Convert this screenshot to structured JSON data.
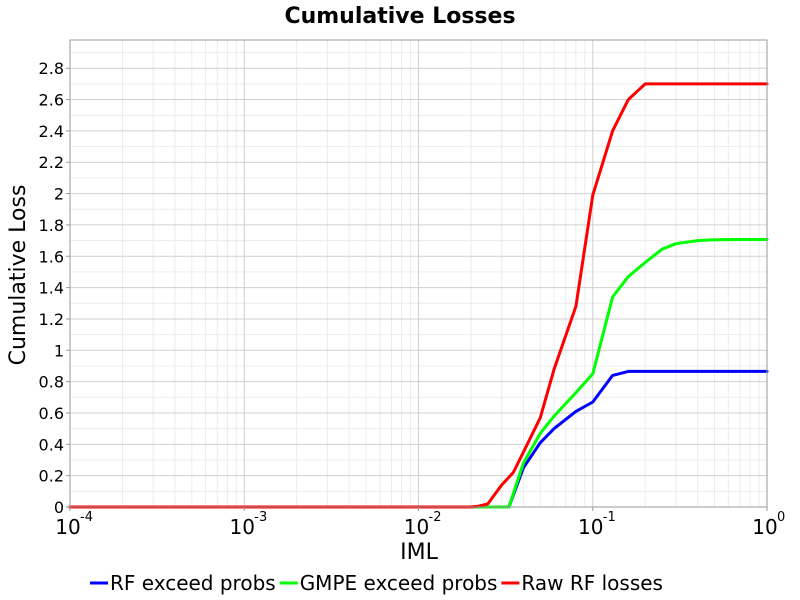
{
  "chart_data": {
    "type": "line",
    "title": "Cumulative Losses",
    "xlabel": "IML",
    "ylabel": "Cumulative Loss",
    "xscale": "log",
    "xlim": [
      0.0001,
      1
    ],
    "ylim": [
      0,
      2.98
    ],
    "x_ticks": [
      {
        "base": "10",
        "exp": "-4"
      },
      {
        "base": "10",
        "exp": "-3"
      },
      {
        "base": "10",
        "exp": "-2"
      },
      {
        "base": "10",
        "exp": "-1"
      },
      {
        "base": "10",
        "exp": "0"
      }
    ],
    "y_ticks": [
      "0",
      "0.2",
      "0.4",
      "0.6",
      "0.8",
      "1",
      "1.2",
      "1.4",
      "1.6",
      "1.8",
      "2",
      "2.2",
      "2.4",
      "2.6",
      "2.8"
    ],
    "grid": true,
    "legend_position": "bottom",
    "series": [
      {
        "name": "RF exceed probs",
        "color": "#0000ff",
        "points": [
          [
            0.0001,
            0
          ],
          [
            0.003,
            0
          ],
          [
            0.01,
            0
          ],
          [
            0.02,
            0
          ],
          [
            0.025,
            0
          ],
          [
            0.03,
            0
          ],
          [
            0.033,
            0
          ],
          [
            0.04,
            0.25
          ],
          [
            0.05,
            0.41
          ],
          [
            0.06,
            0.5
          ],
          [
            0.08,
            0.61
          ],
          [
            0.1,
            0.67
          ],
          [
            0.13,
            0.84
          ],
          [
            0.16,
            0.865
          ],
          [
            0.2,
            0.865
          ],
          [
            0.3,
            0.865
          ],
          [
            0.5,
            0.865
          ],
          [
            1,
            0.865
          ]
        ]
      },
      {
        "name": "GMPE exceed probs",
        "color": "#00ff00",
        "points": [
          [
            0.0001,
            0
          ],
          [
            0.003,
            0
          ],
          [
            0.01,
            0
          ],
          [
            0.02,
            0
          ],
          [
            0.025,
            0
          ],
          [
            0.03,
            0
          ],
          [
            0.033,
            0
          ],
          [
            0.04,
            0.28
          ],
          [
            0.05,
            0.47
          ],
          [
            0.06,
            0.58
          ],
          [
            0.08,
            0.73
          ],
          [
            0.1,
            0.85
          ],
          [
            0.13,
            1.34
          ],
          [
            0.16,
            1.47
          ],
          [
            0.2,
            1.56
          ],
          [
            0.25,
            1.645
          ],
          [
            0.3,
            1.68
          ],
          [
            0.4,
            1.7
          ],
          [
            0.5,
            1.705
          ],
          [
            0.7,
            1.707
          ],
          [
            1,
            1.707
          ]
        ]
      },
      {
        "name": "Raw RF losses",
        "color": "#ff0000",
        "points": [
          [
            0.0001,
            0
          ],
          [
            0.003,
            0
          ],
          [
            0.01,
            0
          ],
          [
            0.02,
            0
          ],
          [
            0.022,
            0.005
          ],
          [
            0.025,
            0.02
          ],
          [
            0.03,
            0.14
          ],
          [
            0.035,
            0.22
          ],
          [
            0.04,
            0.35
          ],
          [
            0.05,
            0.57
          ],
          [
            0.06,
            0.88
          ],
          [
            0.08,
            1.28
          ],
          [
            0.1,
            1.99
          ],
          [
            0.13,
            2.4
          ],
          [
            0.16,
            2.6
          ],
          [
            0.2,
            2.7
          ],
          [
            0.3,
            2.7
          ],
          [
            0.5,
            2.7
          ],
          [
            1,
            2.7
          ]
        ]
      }
    ]
  }
}
